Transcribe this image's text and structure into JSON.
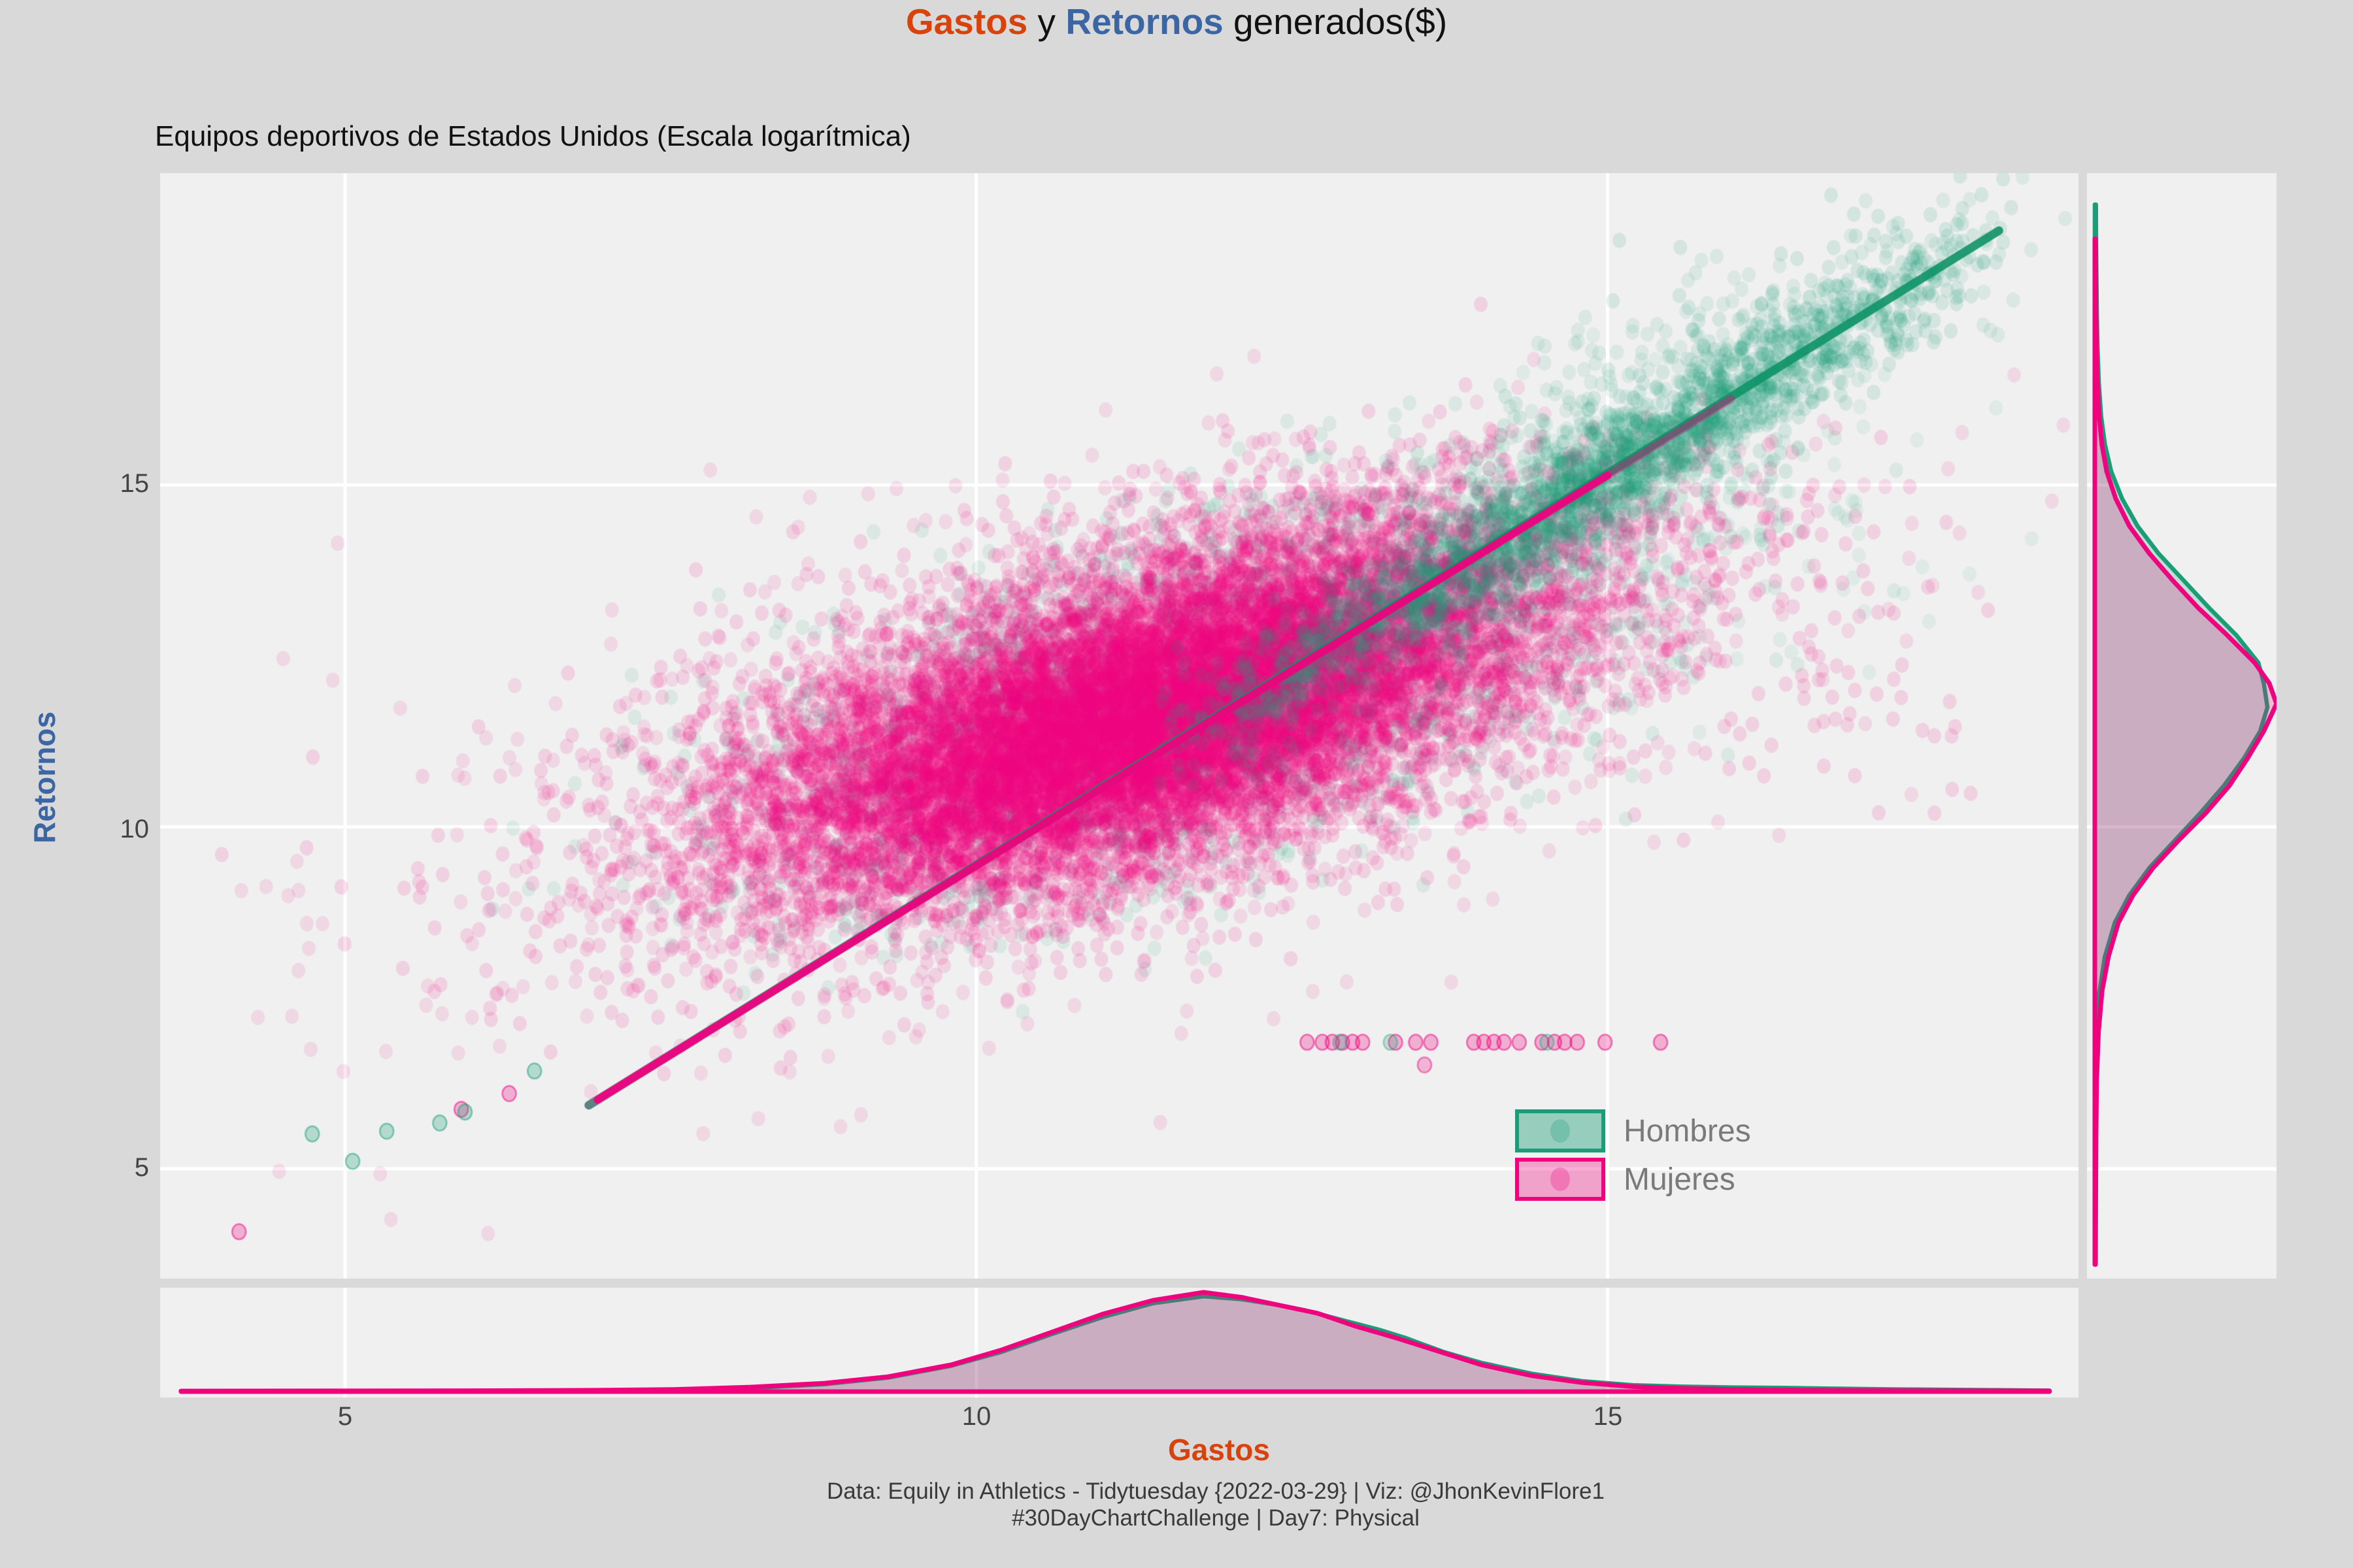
{
  "title": {
    "part1": "Gastos",
    "part2": " y ",
    "part3": "Retornos",
    "part4": " generados($)"
  },
  "subtitle": "Equipos deportivos de Estados Unidos (Escala logarítmica)",
  "caption": {
    "line1": "Data: Equily in Athletics - Tidytuesday {2022-03-29} | Viz: @JhonKevinFlore1",
    "line2": "#30DayChartChallenge | Day7: Physical"
  },
  "colors": {
    "background": "#D9D9D9",
    "panel": "#F0F0F0",
    "grid": "#FFFFFF",
    "tick_text": "#444444",
    "legend_text": "#7A7A7A",
    "caption_text": "#3A3A3A",
    "title_orange": "#D9420B",
    "title_blue": "#3B66A3",
    "hombres": "#1B9E77",
    "hombres_dense": "#0E9266",
    "mujeres": "#F0027F"
  },
  "legend": {
    "items": [
      {
        "label": "Hombres",
        "color": "#1B9E77",
        "fill": "rgba(27,158,119,0.42)"
      },
      {
        "label": "Mujeres",
        "color": "#F0027F",
        "fill": "rgba(240,2,127,0.33)"
      }
    ]
  },
  "chart_data": {
    "type": "scatter",
    "title": "Gastos y Retornos generados($)",
    "subtitle": "Equipos deportivos de Estados Unidos (Escala logarítmica)",
    "xlabel": "Gastos",
    "ylabel": "Retornos",
    "x_axis": {
      "ticks": [
        5,
        10,
        15
      ],
      "tick_labels": [
        "5",
        "10",
        "15"
      ],
      "range": [
        3.535,
        18.73
      ]
    },
    "y_axis": {
      "ticks": [
        5,
        10,
        15
      ],
      "tick_labels": [
        "5",
        "10",
        "15"
      ],
      "range": [
        3.395,
        19.56
      ]
    },
    "grid": "major-white-on-grey",
    "legend_position": "inside-bottom-right",
    "series": [
      {
        "name": "Hombres",
        "color": "#1B9E77"
      },
      {
        "name": "Mujeres",
        "color": "#F0027F"
      }
    ],
    "scatter": {
      "seed": 42,
      "point_radius": 10.5,
      "clusters": [
        {
          "group": "Hombres",
          "n": 2600,
          "cx": 11.5,
          "cy": 11.8,
          "sdx": 1.7,
          "sdy": 1.45,
          "corr": 0.55,
          "alpha": 0.1
        },
        {
          "group": "Hombres",
          "n": 220,
          "cx": 15.2,
          "cy": 14.2,
          "sdx": 1.2,
          "sdy": 1.2,
          "corr": 0.3,
          "alpha": 0.08
        },
        {
          "group": "Mujeres",
          "n": 900,
          "cx": 11.2,
          "cy": 11.5,
          "sdx": 2.7,
          "sdy": 2.3,
          "corr": 0.45,
          "alpha": 0.1
        },
        {
          "group": "Mujeres",
          "n": 14000,
          "cx": 11.45,
          "cy": 11.75,
          "sdx": 1.75,
          "sdy": 1.45,
          "corr": 0.58,
          "alpha": 0.13
        },
        {
          "group": "Mujeres",
          "n": 2500,
          "cx": 11.0,
          "cy": 11.3,
          "sdx": 1.1,
          "sdy": 0.95,
          "corr": 0.65,
          "alpha": 0.18
        },
        {
          "group": "Mujeres",
          "n": 60,
          "cx": 16.9,
          "cy": 12.2,
          "sdx": 0.8,
          "sdy": 1.3,
          "corr": 0.1,
          "alpha": 0.13
        },
        {
          "group": "Hombres",
          "n": 2400,
          "band": true,
          "x0": 11.3,
          "x1": 18.3,
          "slope": 1.141,
          "intercept": -1.98,
          "perp_sd": 0.45,
          "outlier_frac": 0.12,
          "outlier_sd": 1.05,
          "alpha": 0.13
        },
        {
          "group": "Hombres",
          "n": 250,
          "cx": 15.8,
          "cy": 16.9,
          "sdx": 1.3,
          "sdy": 1.1,
          "corr": 0.8,
          "alpha": 0.1
        }
      ],
      "dense_lines": [
        {
          "color": "#0E9266",
          "alpha": 0.9,
          "width": 13,
          "from": [
            6.93,
            5.93
          ],
          "to": [
            18.1,
            18.72
          ]
        },
        {
          "color": "#8A6F8E",
          "alpha": 0.55,
          "width": 13,
          "from": [
            6.93,
            5.93
          ],
          "to": [
            7.8,
            6.92
          ]
        },
        {
          "color": "#F0027F",
          "alpha": 0.95,
          "width": 12,
          "from": [
            7.0,
            6.01
          ],
          "to": [
            15.0,
            15.14
          ]
        },
        {
          "color": "#F0027F",
          "alpha": 0.4,
          "width": 12,
          "from": [
            15.0,
            15.14
          ],
          "to": [
            15.98,
            16.26
          ]
        }
      ],
      "row_points": {
        "y": 6.85,
        "mujeres_x": [
          12.62,
          12.74,
          12.82,
          12.9,
          12.98,
          13.06,
          13.32,
          13.48,
          13.6,
          13.94,
          14.02,
          14.1,
          14.18,
          14.3,
          14.48,
          14.58,
          14.66,
          14.76,
          14.98,
          15.42
        ],
        "hombres_x": [
          12.88,
          13.28,
          14.52
        ],
        "below": [
          {
            "group": "Mujeres",
            "x": 13.55,
            "y": 6.52
          }
        ]
      },
      "tail_points": [
        {
          "group": "Mujeres",
          "x": 4.16,
          "y": 4.08
        },
        {
          "group": "Hombres",
          "x": 4.74,
          "y": 5.51
        },
        {
          "group": "Hombres",
          "x": 5.06,
          "y": 5.11
        },
        {
          "group": "Hombres",
          "x": 5.33,
          "y": 5.55
        },
        {
          "group": "Hombres",
          "x": 5.75,
          "y": 5.67
        },
        {
          "group": "Mujeres",
          "x": 5.92,
          "y": 5.87
        },
        {
          "group": "Hombres",
          "x": 5.95,
          "y": 5.83
        },
        {
          "group": "Hombres",
          "x": 6.5,
          "y": 6.43
        },
        {
          "group": "Mujeres",
          "x": 6.3,
          "y": 6.1
        }
      ]
    },
    "densities": {
      "gastos": {
        "peak_at": 11.8,
        "hombres": [
          [
            6.6,
            0.005
          ],
          [
            7.4,
            0.012
          ],
          [
            8.2,
            0.035
          ],
          [
            8.8,
            0.075
          ],
          [
            9.3,
            0.14
          ],
          [
            9.8,
            0.26
          ],
          [
            10.2,
            0.4
          ],
          [
            10.6,
            0.58
          ],
          [
            11.0,
            0.75
          ],
          [
            11.4,
            0.89
          ],
          [
            11.8,
            0.96
          ],
          [
            12.1,
            0.93
          ],
          [
            12.4,
            0.87
          ],
          [
            12.6,
            0.82
          ],
          [
            12.9,
            0.72
          ],
          [
            13.2,
            0.62
          ],
          [
            13.4,
            0.54
          ],
          [
            13.7,
            0.4
          ],
          [
            14.0,
            0.29
          ],
          [
            14.4,
            0.18
          ],
          [
            14.8,
            0.105
          ],
          [
            15.2,
            0.065
          ],
          [
            15.6,
            0.05
          ],
          [
            16.0,
            0.042
          ],
          [
            16.4,
            0.038
          ],
          [
            16.8,
            0.03
          ],
          [
            17.2,
            0.024
          ],
          [
            17.6,
            0.02
          ],
          [
            18.0,
            0.016
          ],
          [
            18.5,
            0.01
          ]
        ],
        "mujeres": [
          [
            3.7,
            0.006
          ],
          [
            5.0,
            0.007
          ],
          [
            6.0,
            0.009
          ],
          [
            7.0,
            0.014
          ],
          [
            7.6,
            0.022
          ],
          [
            8.2,
            0.045
          ],
          [
            8.8,
            0.085
          ],
          [
            9.3,
            0.15
          ],
          [
            9.8,
            0.27
          ],
          [
            10.2,
            0.42
          ],
          [
            10.6,
            0.6
          ],
          [
            11.0,
            0.78
          ],
          [
            11.4,
            0.92
          ],
          [
            11.8,
            1.0
          ],
          [
            12.1,
            0.95
          ],
          [
            12.4,
            0.87
          ],
          [
            12.7,
            0.79
          ],
          [
            13.0,
            0.66
          ],
          [
            13.3,
            0.55
          ],
          [
            13.6,
            0.43
          ],
          [
            14.0,
            0.27
          ],
          [
            14.4,
            0.16
          ],
          [
            14.8,
            0.09
          ],
          [
            15.2,
            0.05
          ],
          [
            15.6,
            0.032
          ],
          [
            16.0,
            0.022
          ],
          [
            16.5,
            0.015
          ],
          [
            17.0,
            0.011
          ],
          [
            17.5,
            0.009
          ],
          [
            18.0,
            0.008
          ],
          [
            18.5,
            0.007
          ]
        ]
      },
      "retornos": {
        "peak_at": 11.8,
        "hombres": [
          [
            6.9,
            0.006
          ],
          [
            7.5,
            0.02
          ],
          [
            8.1,
            0.055
          ],
          [
            8.6,
            0.11
          ],
          [
            9.0,
            0.19
          ],
          [
            9.4,
            0.3
          ],
          [
            9.8,
            0.44
          ],
          [
            10.2,
            0.58
          ],
          [
            10.6,
            0.71
          ],
          [
            11.0,
            0.82
          ],
          [
            11.4,
            0.91
          ],
          [
            11.75,
            0.95
          ],
          [
            12.1,
            0.93
          ],
          [
            12.4,
            0.9
          ],
          [
            12.8,
            0.78
          ],
          [
            13.2,
            0.63
          ],
          [
            13.6,
            0.49
          ],
          [
            14.0,
            0.35
          ],
          [
            14.4,
            0.235
          ],
          [
            14.8,
            0.15
          ],
          [
            15.2,
            0.09
          ],
          [
            15.6,
            0.055
          ],
          [
            16.0,
            0.035
          ],
          [
            16.5,
            0.022
          ],
          [
            17.0,
            0.015
          ],
          [
            17.5,
            0.011
          ],
          [
            18.0,
            0.009
          ],
          [
            18.6,
            0.007
          ],
          [
            19.1,
            0.006
          ]
        ],
        "mujeres": [
          [
            3.6,
            0.004
          ],
          [
            4.5,
            0.005
          ],
          [
            5.5,
            0.007
          ],
          [
            6.3,
            0.01
          ],
          [
            7.0,
            0.02
          ],
          [
            7.6,
            0.04
          ],
          [
            8.1,
            0.075
          ],
          [
            8.6,
            0.13
          ],
          [
            9.0,
            0.21
          ],
          [
            9.4,
            0.32
          ],
          [
            9.8,
            0.46
          ],
          [
            10.2,
            0.61
          ],
          [
            10.6,
            0.74
          ],
          [
            11.0,
            0.84
          ],
          [
            11.4,
            0.93
          ],
          [
            11.8,
            1.0
          ],
          [
            12.1,
            0.96
          ],
          [
            12.4,
            0.88
          ],
          [
            12.8,
            0.73
          ],
          [
            13.2,
            0.57
          ],
          [
            13.6,
            0.43
          ],
          [
            14.0,
            0.3
          ],
          [
            14.4,
            0.19
          ],
          [
            14.8,
            0.115
          ],
          [
            15.2,
            0.065
          ],
          [
            15.6,
            0.038
          ],
          [
            16.0,
            0.024
          ],
          [
            16.5,
            0.014
          ],
          [
            17.0,
            0.009
          ],
          [
            17.5,
            0.007
          ],
          [
            18.0,
            0.006
          ],
          [
            18.6,
            0.005
          ]
        ]
      }
    }
  },
  "ticks": {
    "x": [
      "5",
      "10",
      "15"
    ],
    "y": [
      "15",
      "10",
      "5"
    ]
  }
}
